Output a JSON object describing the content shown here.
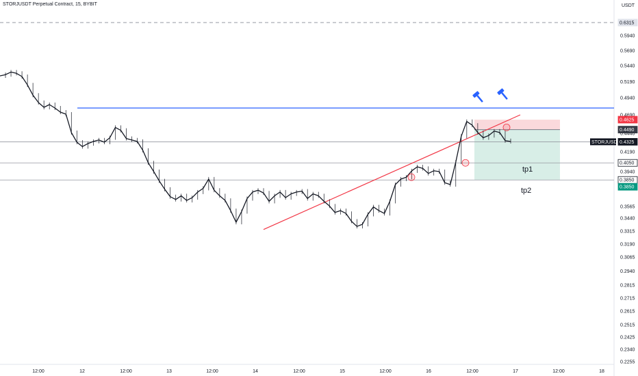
{
  "header": {
    "title": "STORJUSDT Perpetual Contract, 15, BYBIT"
  },
  "chart_data": {
    "type": "line",
    "title": "STORJUSDT Perpetual Contract, 15, BYBIT",
    "currency": "USDT",
    "y_ticks": [
      0.594,
      0.569,
      0.544,
      0.519,
      0.494,
      0.469,
      0.444,
      0.419,
      0.394,
      0.3565,
      0.344,
      0.3315,
      0.319,
      0.3065,
      0.294,
      0.2815,
      0.2715,
      0.2615,
      0.2515,
      0.2425,
      0.234,
      0.2255
    ],
    "x_ticks": [
      "12:00",
      "12",
      "12:00",
      "13",
      "12:00",
      "14",
      "12:00",
      "15",
      "12:00",
      "16",
      "12:00",
      "17",
      "12:00",
      "18"
    ],
    "price_tags": [
      {
        "label": "0.6315",
        "value": 0.6315,
        "style": "dashed"
      },
      {
        "label": "0.4625",
        "value": 0.4625,
        "style": "red"
      },
      {
        "label": "0.4490",
        "value": 0.449,
        "style": "dark"
      },
      {
        "label": "STORJUSDT",
        "value": 0.4325,
        "price_label": "0.4325",
        "style": "symbol"
      },
      {
        "label": "0.4050",
        "value": 0.405,
        "style": "outline"
      },
      {
        "label": "0.3850",
        "value": 0.385,
        "style": "outline"
      },
      {
        "label": "0.3850",
        "value": 0.385,
        "style": "teal"
      }
    ],
    "price_series": [
      0.528,
      0.53,
      0.534,
      0.532,
      0.527,
      0.514,
      0.498,
      0.487,
      0.48,
      0.484,
      0.479,
      0.473,
      0.47,
      0.445,
      0.432,
      0.426,
      0.43,
      0.433,
      0.435,
      0.432,
      0.438,
      0.452,
      0.448,
      0.437,
      0.435,
      0.433,
      0.421,
      0.405,
      0.394,
      0.384,
      0.375,
      0.367,
      0.364,
      0.368,
      0.363,
      0.366,
      0.372,
      0.376,
      0.386,
      0.374,
      0.368,
      0.363,
      0.352,
      0.34,
      0.351,
      0.365,
      0.372,
      0.374,
      0.371,
      0.362,
      0.368,
      0.372,
      0.366,
      0.37,
      0.372,
      0.373,
      0.365,
      0.37,
      0.368,
      0.362,
      0.357,
      0.35,
      0.352,
      0.349,
      0.341,
      0.336,
      0.338,
      0.348,
      0.356,
      0.352,
      0.349,
      0.362,
      0.38,
      0.386,
      0.388,
      0.395,
      0.4,
      0.398,
      0.392,
      0.395,
      0.394,
      0.382,
      0.38,
      0.406,
      0.44,
      0.46,
      0.455,
      0.445,
      0.438,
      0.441,
      0.447,
      0.445,
      0.434,
      0.433
    ],
    "horizontal_levels": [
      {
        "value": 0.479,
        "color": "#2962ff"
      },
      {
        "value": 0.4325,
        "color": "#9598a1"
      },
      {
        "value": 0.405,
        "color": "#9598a1"
      },
      {
        "value": 0.385,
        "color": "#9598a1"
      }
    ],
    "trendline": {
      "from": 0.333,
      "to": 0.469,
      "color": "#f23645"
    },
    "position": {
      "stop": 0.4625,
      "entry": 0.449,
      "target": 0.385
    },
    "annotations": [
      "tp1",
      "tp2"
    ],
    "colors": {
      "stop_zone": "#f8c9cd",
      "profit_zone": "#d4ece4",
      "teal": "#089981",
      "red": "#f23645",
      "blue": "#2962ff"
    }
  }
}
